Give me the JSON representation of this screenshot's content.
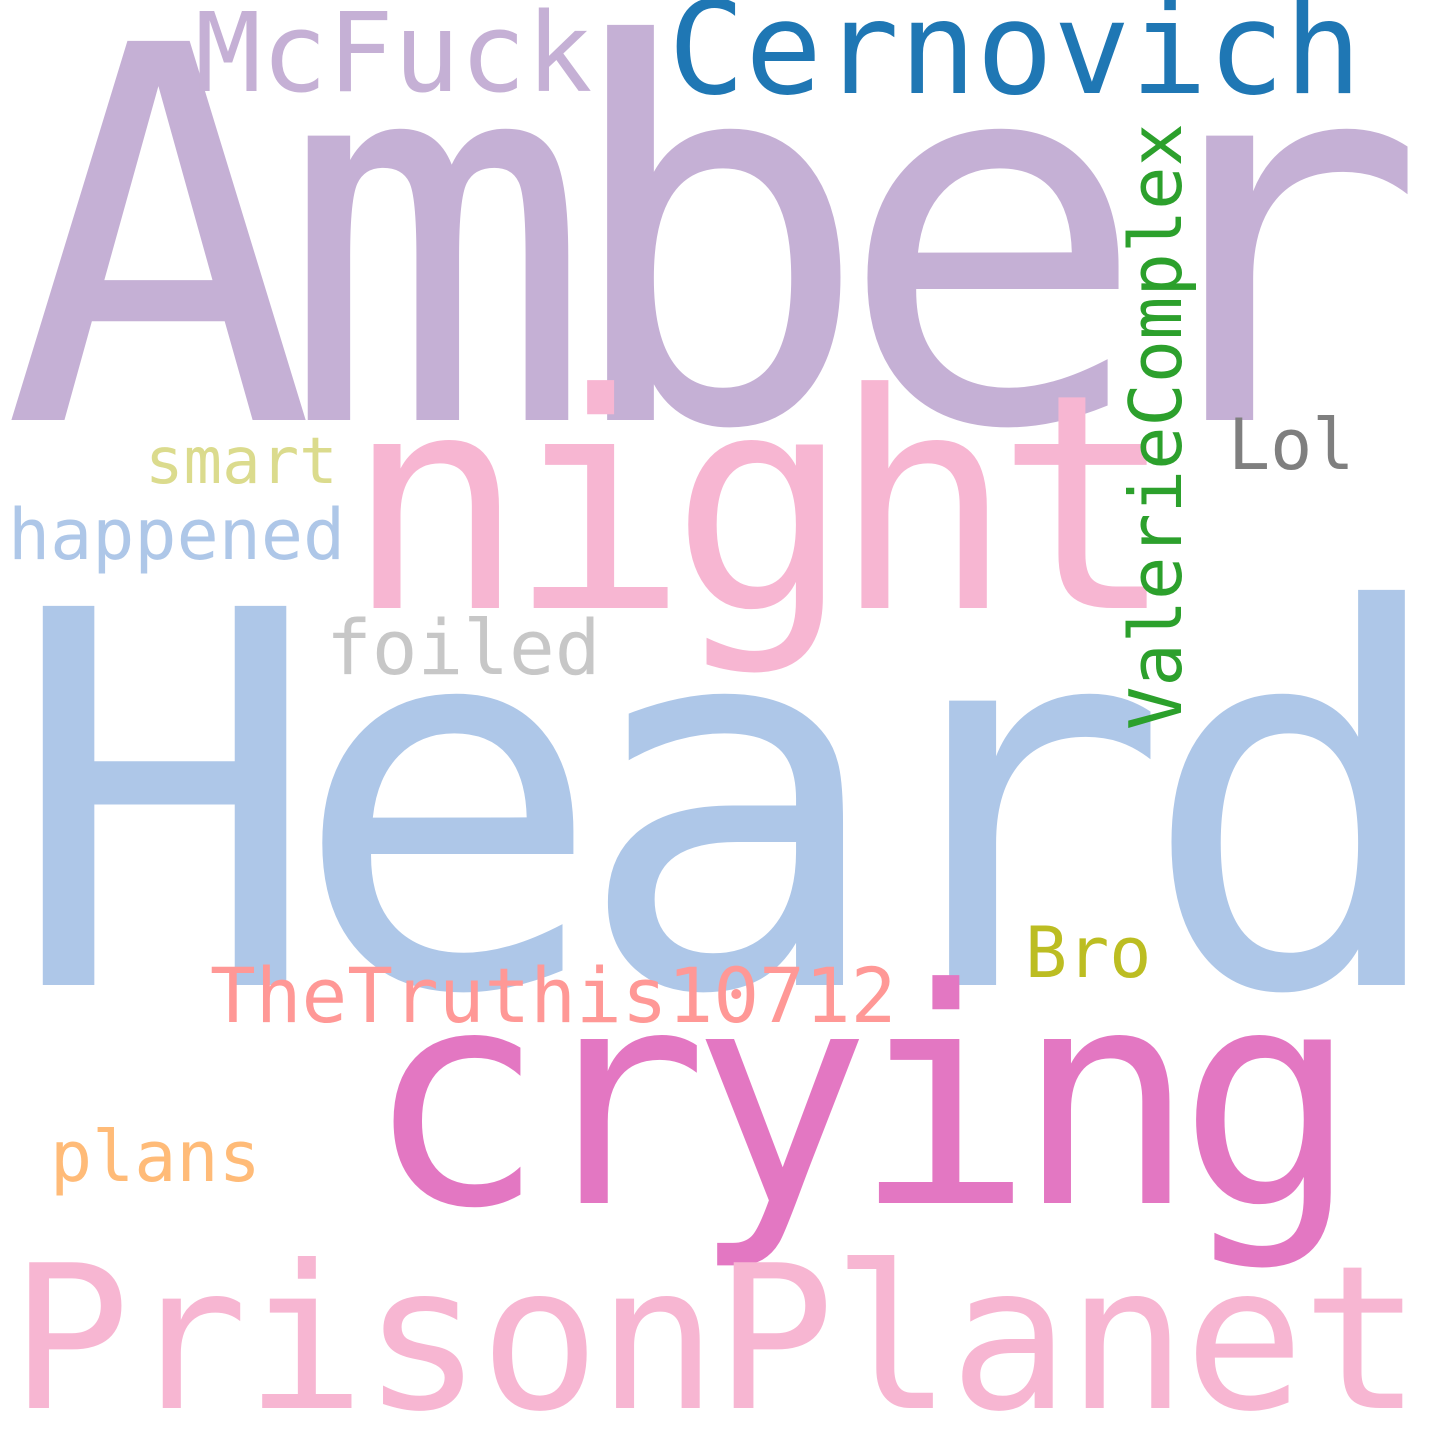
{
  "words": {
    "amber": {
      "text": "Amber",
      "color": "#c5b0d5"
    },
    "heard": {
      "text": "Heard",
      "color": "#aec7e8"
    },
    "night": {
      "text": "night",
      "color": "#f7b6d2"
    },
    "crying": {
      "text": "crying",
      "color": "#e377c2"
    },
    "prison": {
      "text": "PrisonPlanet",
      "color": "#f7b6d2"
    },
    "cernovich": {
      "text": "Cernovich",
      "color": "#1f77b4"
    },
    "mcfuck": {
      "text": "McFuck",
      "color": "#c5b0d5"
    },
    "truthis": {
      "text": "TheTruthis10712",
      "color": "#ff9896"
    },
    "happened": {
      "text": "happened",
      "color": "#aec7e8"
    },
    "smart": {
      "text": "smart",
      "color": "#dbdb8d"
    },
    "foiled": {
      "text": "foiled",
      "color": "#c7c7c7"
    },
    "lol": {
      "text": "Lol",
      "color": "#7f7f7f"
    },
    "bro": {
      "text": "Bro",
      "color": "#bcbd22"
    },
    "plans": {
      "text": "plans",
      "color": "#ffbb78"
    },
    "valerie": {
      "text": "ValerieComplex",
      "color": "#2ca02c"
    }
  }
}
